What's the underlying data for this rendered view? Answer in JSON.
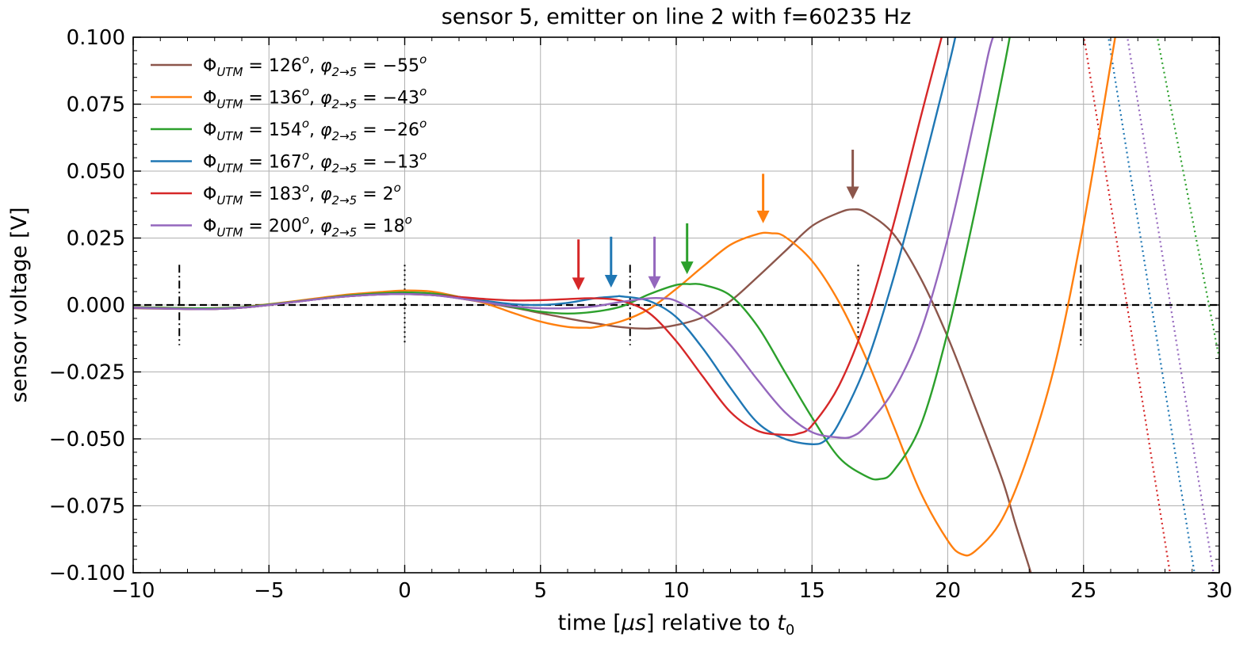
{
  "chart_data": {
    "type": "line",
    "title": "sensor 5, emitter on line 2 with f=60235 Hz",
    "xlabel": "time [μs] relative to t0",
    "xlabel_parts": {
      "pre": "time [",
      "mu": "μs",
      "post": "] relative to ",
      "t": "t",
      "sub": "0"
    },
    "ylabel": "sensor voltage [V]",
    "xlim": [
      -10,
      30
    ],
    "ylim": [
      -0.1,
      0.1
    ],
    "xticks": [
      -10,
      -5,
      0,
      5,
      10,
      15,
      20,
      25,
      30
    ],
    "xtick_labels": [
      "−10",
      "−5",
      "0",
      "5",
      "10",
      "15",
      "20",
      "25",
      "30"
    ],
    "yticks": [
      -0.1,
      -0.075,
      -0.05,
      -0.025,
      0.0,
      0.025,
      0.05,
      0.075,
      0.1
    ],
    "ytick_labels": [
      "−0.100",
      "−0.075",
      "−0.050",
      "−0.025",
      "0.000",
      "0.025",
      "0.050",
      "0.075",
      "0.100"
    ],
    "grid": true,
    "legend_position": "upper-left",
    "zero_line": true,
    "series": [
      {
        "name": "ΦUTM = 126°, φ2→5 = −55°",
        "legend": {
          "Phi": "Φ",
          "sub1": "UTM",
          "eq1": " = 126",
          "deg1": "o",
          "comma": ", ",
          "phi": "φ",
          "sub2": "2→5",
          "eq2": " = −55",
          "deg2": "o"
        },
        "color": "#8c564b",
        "arrow": {
          "x": 16.5,
          "y_tip": 0.0395,
          "y_tail": 0.058
        },
        "points": [
          [
            -10,
            -0.0012
          ],
          [
            -8,
            -0.0015
          ],
          [
            -7,
            -0.0015
          ],
          [
            -6,
            -0.001
          ],
          [
            -5,
            0.0
          ],
          [
            -4,
            0.0012
          ],
          [
            -3,
            0.0025
          ],
          [
            -2,
            0.0035
          ],
          [
            -1,
            0.0042
          ],
          [
            0,
            0.0044
          ],
          [
            1,
            0.0038
          ],
          [
            2,
            0.0025
          ],
          [
            3,
            0.0008
          ],
          [
            4,
            -0.001
          ],
          [
            5,
            -0.003
          ],
          [
            6,
            -0.005
          ],
          [
            7,
            -0.0068
          ],
          [
            8,
            -0.0083
          ],
          [
            9,
            -0.0088
          ],
          [
            10,
            -0.0075
          ],
          [
            11,
            -0.0045
          ],
          [
            12,
            0.0015
          ],
          [
            13,
            0.0105
          ],
          [
            14,
            0.02
          ],
          [
            15,
            0.0295
          ],
          [
            16,
            0.0345
          ],
          [
            16.5,
            0.0357
          ],
          [
            17,
            0.0345
          ],
          [
            18,
            0.0265
          ],
          [
            19,
            0.01
          ],
          [
            20,
            -0.012
          ],
          [
            21,
            -0.038
          ],
          [
            22,
            -0.065
          ],
          [
            22.5,
            -0.082
          ],
          [
            23,
            -0.098
          ],
          [
            23.2,
            -0.105
          ]
        ]
      },
      {
        "name": "ΦUTM = 136°, φ2→5 = −43°",
        "legend": {
          "Phi": "Φ",
          "sub1": "UTM",
          "eq1": " = 136",
          "deg1": "o",
          "comma": ", ",
          "phi": "φ",
          "sub2": "2→5",
          "eq2": " = −43",
          "deg2": "o"
        },
        "color": "#ff7f0e",
        "arrow": {
          "x": 13.2,
          "y_tip": 0.0305,
          "y_tail": 0.049
        },
        "points": [
          [
            -10,
            -0.0008
          ],
          [
            -8,
            -0.0012
          ],
          [
            -7,
            -0.0012
          ],
          [
            -6,
            -0.0008
          ],
          [
            -5,
            0.0003
          ],
          [
            -4,
            0.0015
          ],
          [
            -3,
            0.0028
          ],
          [
            -2,
            0.004
          ],
          [
            -1,
            0.0048
          ],
          [
            0,
            0.0054
          ],
          [
            1,
            0.005
          ],
          [
            2,
            0.003
          ],
          [
            3,
            0.0005
          ],
          [
            4,
            -0.003
          ],
          [
            5,
            -0.0062
          ],
          [
            6,
            -0.0082
          ],
          [
            6.7,
            -0.0085
          ],
          [
            7,
            -0.0083
          ],
          [
            8,
            -0.006
          ],
          [
            9,
            -0.0015
          ],
          [
            10,
            0.006
          ],
          [
            11,
            0.0145
          ],
          [
            12,
            0.0225
          ],
          [
            13,
            0.0265
          ],
          [
            13.5,
            0.0268
          ],
          [
            14,
            0.0255
          ],
          [
            15,
            0.0165
          ],
          [
            16,
            0.001
          ],
          [
            17,
            -0.02
          ],
          [
            18,
            -0.045
          ],
          [
            19,
            -0.07
          ],
          [
            20,
            -0.088
          ],
          [
            20.5,
            -0.093
          ],
          [
            21,
            -0.092
          ],
          [
            22,
            -0.08
          ],
          [
            23,
            -0.055
          ],
          [
            24,
            -0.02
          ],
          [
            25,
            0.03
          ],
          [
            26,
            0.09
          ],
          [
            26.2,
            0.102
          ]
        ]
      },
      {
        "name": "ΦUTM = 154°, φ2→5 = −26°",
        "legend": {
          "Phi": "Φ",
          "sub1": "UTM",
          "eq1": " = 154",
          "deg1": "o",
          "comma": ", ",
          "phi": "φ",
          "sub2": "2→5",
          "eq2": " = −26",
          "deg2": "o"
        },
        "color": "#2ca02c",
        "arrow": {
          "x": 10.4,
          "y_tip": 0.0115,
          "y_tail": 0.0305
        },
        "points": [
          [
            -10,
            -0.0008
          ],
          [
            -8,
            -0.0012
          ],
          [
            -7,
            -0.0012
          ],
          [
            -6,
            -0.0008
          ],
          [
            -5,
            0.0002
          ],
          [
            -4,
            0.0013
          ],
          [
            -3,
            0.0025
          ],
          [
            -2,
            0.0036
          ],
          [
            -1,
            0.0043
          ],
          [
            0,
            0.0047
          ],
          [
            1,
            0.0043
          ],
          [
            2,
            0.003
          ],
          [
            3,
            0.0012
          ],
          [
            4,
            -0.0008
          ],
          [
            5,
            -0.0025
          ],
          [
            6,
            -0.0032
          ],
          [
            7,
            -0.0025
          ],
          [
            8,
            -0.0005
          ],
          [
            9,
            0.004
          ],
          [
            10,
            0.0075
          ],
          [
            10.5,
            0.0078
          ],
          [
            11,
            0.0075
          ],
          [
            12,
            0.0035
          ],
          [
            13,
            -0.008
          ],
          [
            14,
            -0.025
          ],
          [
            15,
            -0.042
          ],
          [
            16,
            -0.057
          ],
          [
            17,
            -0.064
          ],
          [
            17.5,
            -0.065
          ],
          [
            18,
            -0.062
          ],
          [
            19,
            -0.045
          ],
          [
            20,
            -0.01
          ],
          [
            21,
            0.035
          ],
          [
            22,
            0.085
          ],
          [
            22.3,
            0.101
          ]
        ]
      },
      {
        "name": "ΦUTM = 167°, φ2→5 = −13°",
        "legend": {
          "Phi": "Φ",
          "sub1": "UTM",
          "eq1": " = 167",
          "deg1": "o",
          "comma": ", ",
          "phi": "φ",
          "sub2": "2→5",
          "eq2": " = −13",
          "deg2": "o"
        },
        "color": "#1f77b4",
        "arrow": {
          "x": 7.6,
          "y_tip": 0.0065,
          "y_tail": 0.0255
        },
        "points": [
          [
            -10,
            -0.001
          ],
          [
            -8,
            -0.0015
          ],
          [
            -7,
            -0.0015
          ],
          [
            -6,
            -0.001
          ],
          [
            -5,
            0.0
          ],
          [
            -4,
            0.0012
          ],
          [
            -3,
            0.0024
          ],
          [
            -2,
            0.0033
          ],
          [
            -1,
            0.0039
          ],
          [
            0,
            0.0041
          ],
          [
            1,
            0.0037
          ],
          [
            2,
            0.0027
          ],
          [
            3,
            0.0015
          ],
          [
            4,
            0.0003
          ],
          [
            5,
            0.0
          ],
          [
            6,
            0.0008
          ],
          [
            7,
            0.0025
          ],
          [
            7.8,
            0.0032
          ],
          [
            8,
            0.0032
          ],
          [
            9,
            0.0015
          ],
          [
            10,
            -0.0045
          ],
          [
            11,
            -0.0165
          ],
          [
            12,
            -0.031
          ],
          [
            13,
            -0.044
          ],
          [
            14,
            -0.05
          ],
          [
            15,
            -0.052
          ],
          [
            15.5,
            -0.0505
          ],
          [
            16,
            -0.044
          ],
          [
            17,
            -0.022
          ],
          [
            18,
            0.01
          ],
          [
            19,
            0.048
          ],
          [
            20,
            0.088
          ],
          [
            20.3,
            0.101
          ]
        ]
      },
      {
        "name": "ΦUTM = 183°, φ2→5 = 2°",
        "legend": {
          "Phi": "Φ",
          "sub1": "UTM",
          "eq1": " = 183",
          "deg1": "o",
          "comma": ", ",
          "phi": "φ",
          "sub2": "2→5",
          "eq2": " = 2",
          "deg2": "o"
        },
        "color": "#d62728",
        "arrow": {
          "x": 6.4,
          "y_tip": 0.0055,
          "y_tail": 0.0245
        },
        "points": [
          [
            -10,
            -0.001
          ],
          [
            -8,
            -0.0015
          ],
          [
            -7,
            -0.0015
          ],
          [
            -6,
            -0.001
          ],
          [
            -5,
            0.0
          ],
          [
            -4,
            0.0012
          ],
          [
            -3,
            0.0024
          ],
          [
            -2,
            0.0033
          ],
          [
            -1,
            0.0039
          ],
          [
            0,
            0.0041
          ],
          [
            1,
            0.0037
          ],
          [
            2,
            0.003
          ],
          [
            3,
            0.0022
          ],
          [
            4,
            0.0017
          ],
          [
            5,
            0.0018
          ],
          [
            6,
            0.0022
          ],
          [
            7,
            0.0025
          ],
          [
            8,
            0.0015
          ],
          [
            9,
            -0.003
          ],
          [
            10,
            -0.0135
          ],
          [
            11,
            -0.027
          ],
          [
            12,
            -0.04
          ],
          [
            13,
            -0.047
          ],
          [
            14,
            -0.0485
          ],
          [
            14.5,
            -0.048
          ],
          [
            15,
            -0.045
          ],
          [
            16,
            -0.03
          ],
          [
            17,
            -0.005
          ],
          [
            18,
            0.03
          ],
          [
            19,
            0.07
          ],
          [
            19.8,
            0.101
          ]
        ]
      },
      {
        "name": "ΦUTM = 200°, φ2→5 = 18°",
        "legend": {
          "Phi": "Φ",
          "sub1": "UTM",
          "eq1": " = 200",
          "deg1": "o",
          "comma": ", ",
          "phi": "φ",
          "sub2": "2→5",
          "eq2": " = 18",
          "deg2": "o"
        },
        "color": "#9467bd",
        "arrow": {
          "x": 9.2,
          "y_tip": 0.006,
          "y_tail": 0.0255
        },
        "points": [
          [
            -10,
            -0.001
          ],
          [
            -8,
            -0.0015
          ],
          [
            -7,
            -0.0015
          ],
          [
            -6,
            -0.001
          ],
          [
            -5,
            0.0
          ],
          [
            -4,
            0.0012
          ],
          [
            -3,
            0.0024
          ],
          [
            -2,
            0.0033
          ],
          [
            -1,
            0.0039
          ],
          [
            0,
            0.0041
          ],
          [
            1,
            0.0037
          ],
          [
            2,
            0.0025
          ],
          [
            3,
            0.001
          ],
          [
            4,
            -0.0005
          ],
          [
            5,
            -0.0012
          ],
          [
            6,
            -0.0012
          ],
          [
            7,
            -0.0005
          ],
          [
            8,
            0.0012
          ],
          [
            9,
            0.0025
          ],
          [
            9.5,
            0.0025
          ],
          [
            10,
            0.0015
          ],
          [
            11,
            -0.0045
          ],
          [
            12,
            -0.015
          ],
          [
            13,
            -0.028
          ],
          [
            14,
            -0.04
          ],
          [
            15,
            -0.0475
          ],
          [
            16,
            -0.0495
          ],
          [
            16.5,
            -0.049
          ],
          [
            17,
            -0.045
          ],
          [
            18,
            -0.032
          ],
          [
            19,
            -0.01
          ],
          [
            20,
            0.025
          ],
          [
            21,
            0.07
          ],
          [
            21.5,
            0.094
          ],
          [
            21.7,
            0.101
          ]
        ]
      }
    ],
    "dotted_tails": [
      {
        "color": "#d62728",
        "points": [
          [
            25.0,
            0.101
          ],
          [
            28.2,
            -0.101
          ]
        ]
      },
      {
        "color": "#1f77b4",
        "points": [
          [
            25.9,
            0.101
          ],
          [
            29.1,
            -0.101
          ]
        ]
      },
      {
        "color": "#9467bd",
        "points": [
          [
            26.6,
            0.101
          ],
          [
            29.8,
            -0.101
          ]
        ]
      },
      {
        "color": "#2ca02c",
        "points": [
          [
            27.7,
            0.101
          ],
          [
            30.0,
            -0.02
          ]
        ]
      }
    ],
    "markers": [
      {
        "x": -8.3,
        "style": "dashdot",
        "y_range": [
          -0.015,
          0.015
        ]
      },
      {
        "x": 0.0,
        "style": "dotted",
        "y_range": [
          -0.015,
          0.015
        ]
      },
      {
        "x": 8.3,
        "style": "dashdot",
        "y_range": [
          -0.015,
          0.015
        ]
      },
      {
        "x": 16.7,
        "style": "dotted",
        "y_range": [
          -0.015,
          0.015
        ]
      },
      {
        "x": 24.9,
        "style": "dashdot",
        "y_range": [
          -0.015,
          0.015
        ]
      }
    ]
  }
}
